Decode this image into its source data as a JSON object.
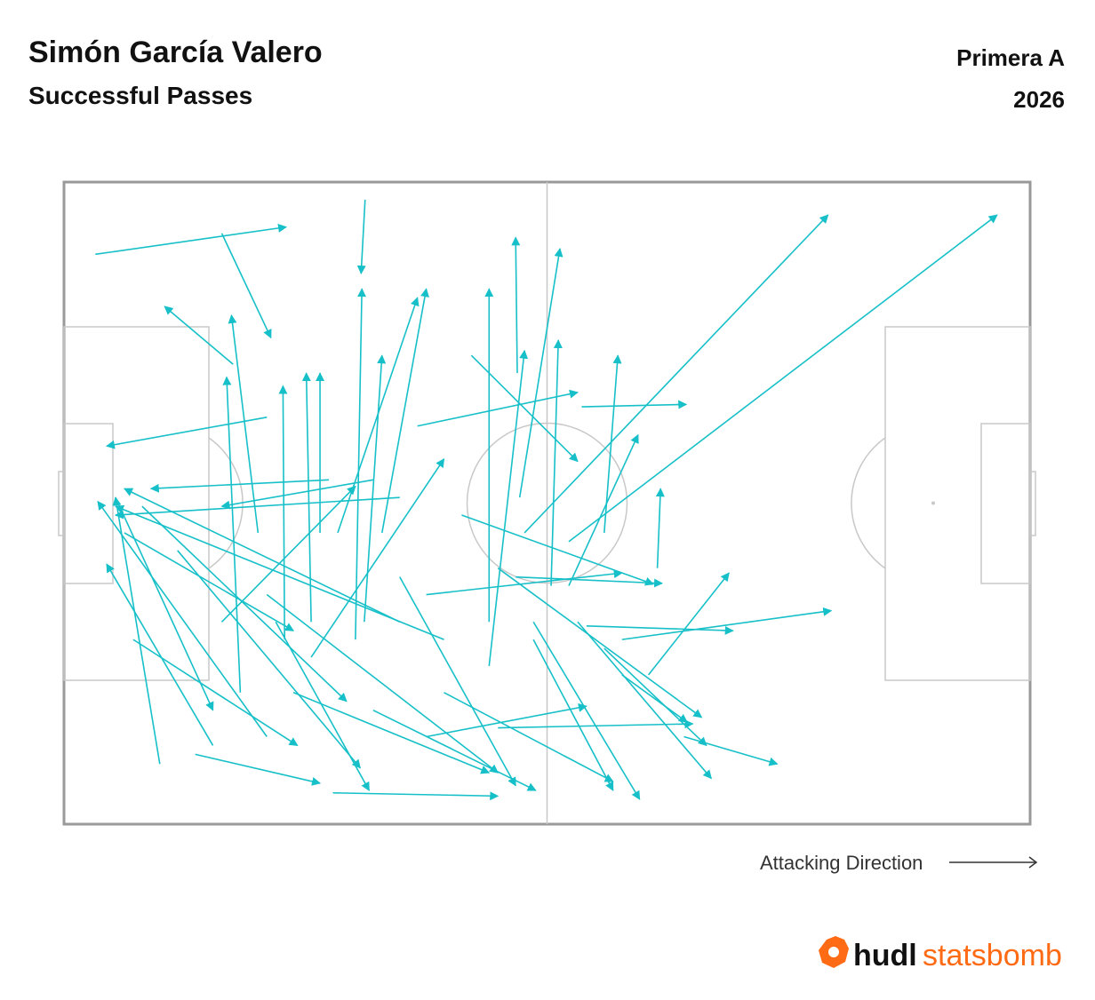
{
  "header": {
    "title": "Simón García Valero",
    "subtitle": "Successful Passes",
    "competition": "Primera A",
    "season": "2026"
  },
  "chart_data": {
    "type": "pass-map",
    "color": "#17c0c8",
    "xlim": [
      0,
      120
    ],
    "ylim": [
      0,
      80
    ],
    "direction_label": "Attacking Direction",
    "x": [
      3.9,
      19.6,
      37.4,
      25.2,
      21.0,
      64.3,
      57.2,
      62.7,
      69.3,
      72.6,
      64.9,
      77.0,
      73.7,
      67.1,
      56.3,
      56.6,
      50.6,
      43.9,
      32.9,
      18.5,
      11.9,
      16.3,
      33.4,
      25.2,
      41.7,
      47.2,
      39.5,
      52.8,
      36.2,
      30.7,
      27.4,
      31.8,
      21.9,
      24.1,
      34.0,
      37.3,
      62.7,
      30.7,
      38.4,
      47.2,
      58.3,
      63.8,
      53.9,
      67.1,
      41.7,
      26.3,
      14.1,
      8.6,
      49.4,
      56.1,
      45.0,
      25.2,
      58.3,
      19.6,
      52.8,
      69.3,
      53.9,
      45.0,
      28.5,
      7.5,
      6.4,
      9.7,
      38.4,
      41.7,
      60.5
    ],
    "y": [
      9.0,
      6.4,
      2.2,
      29.3,
      22.7,
      28.0,
      43.7,
      44.8,
      57.0,
      61.4,
      55.3,
      69.1,
      48.1,
      43.7,
      23.8,
      39.3,
      21.6,
      30.4,
      37.1,
      70.2,
      72.5,
      71.3,
      76.1,
      69.1,
      54.8,
      57.0,
      43.7,
      54.8,
      57.0,
      54.8,
      57.0,
      43.7,
      63.6,
      43.7,
      43.7,
      54.8,
      50.3,
      59.2,
      65.8,
      63.6,
      54.8,
      54.8,
      48.1,
      58.1,
      49.2,
      54.8,
      45.9,
      57.0,
      41.5,
      49.2,
      51.4,
      51.4,
      57.0,
      54.8,
      60.3,
      61.4,
      68.0,
      69.1,
      63.6,
      43.7,
      39.3,
      40.4,
      37.1,
      39.3,
      50.3
    ],
    "end_x": [
      27.6,
      25.7,
      36.9,
      5.3,
      12.5,
      77.3,
      94.9,
      115.9,
      95.3,
      82.6,
      83.1,
      88.6,
      74.1,
      68.8,
      56.1,
      61.6,
      63.8,
      63.8,
      10.8,
      5.3,
      6.4,
      31.8,
      53.9,
      4.2,
      7.5,
      6.4,
      45.0,
      52.8,
      37.0,
      30.1,
      27.2,
      31.8,
      20.2,
      20.8,
      43.9,
      39.5,
      71.3,
      47.2,
      58.6,
      68.2,
      71.5,
      80.4,
      79.2,
      79.8,
      56.1,
      37.9,
      36.8,
      29.0,
      73.2,
      74.3,
      69.3,
      53.9,
      68.2,
      36.2,
      57.2,
      77.4,
      78.1,
      64.9,
      52.8,
      28.5,
      18.5,
      35.1,
      19.6,
      6.4,
      61.4
    ],
    "end_y": [
      5.6,
      19.4,
      11.4,
      32.9,
      15.5,
      27.7,
      4.1,
      4.1,
      53.4,
      48.7,
      55.9,
      72.5,
      38.2,
      21.6,
      6.9,
      8.3,
      34.8,
      26.2,
      38.2,
      47.6,
      39.3,
      74.9,
      76.5,
      39.8,
      38.2,
      40.4,
      13.3,
      13.3,
      13.3,
      23.8,
      25.4,
      23.8,
      24.3,
      16.6,
      14.4,
      21.6,
      31.5,
      34.5,
      75.8,
      74.7,
      76.9,
      74.3,
      66.7,
      70.2,
      75.2,
      75.8,
      73.0,
      70.2,
      50.1,
      50.0,
      48.7,
      73.6,
      75.8,
      37.9,
      21.0,
      67.3,
      67.5,
      65.3,
      73.6,
      55.9,
      65.8,
      64.7,
      40.4,
      41.5,
      19.7
    ]
  },
  "logo": {
    "brand": "hudl",
    "product": "statsbomb"
  }
}
